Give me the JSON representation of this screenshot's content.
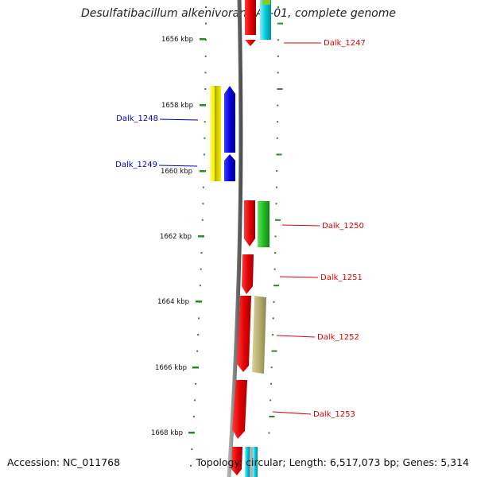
{
  "title": "Desulfatibacillum alkenivorans AK-01, complete genome",
  "accession": "Accession: NC_011768",
  "summary": "Topology: circular; Length: 6,517,073 bp; Genes: 5,314",
  "kbp_labels": [
    "1656 kbp",
    "1658 kbp",
    "1660 kbp",
    "1662 kbp",
    "1664 kbp",
    "1666 kbp",
    "1668 kbp"
  ],
  "genes": [
    {
      "id": "Dalk_1247",
      "strand": "forward",
      "color": "#e00000"
    },
    {
      "id": "Dalk_1248",
      "strand": "reverse",
      "color": "#0000cc"
    },
    {
      "id": "Dalk_1249",
      "strand": "reverse",
      "color": "#0000cc"
    },
    {
      "id": "Dalk_1250",
      "strand": "forward",
      "color": "#e00000"
    },
    {
      "id": "Dalk_1251",
      "strand": "forward",
      "color": "#e00000"
    },
    {
      "id": "Dalk_1252",
      "strand": "forward",
      "color": "#e00000"
    },
    {
      "id": "Dalk_1253",
      "strand": "forward",
      "color": "#e00000"
    }
  ],
  "colors": {
    "forward_cds": "#e00000",
    "reverse_cds": "#0000cc",
    "backbone": "#808080",
    "ticks": "#2a8a2a",
    "yellow_band": "#f5f000",
    "green_band": "#22bb22",
    "olive_band": "#b8b070",
    "cyan_band": "#00c8d8"
  }
}
